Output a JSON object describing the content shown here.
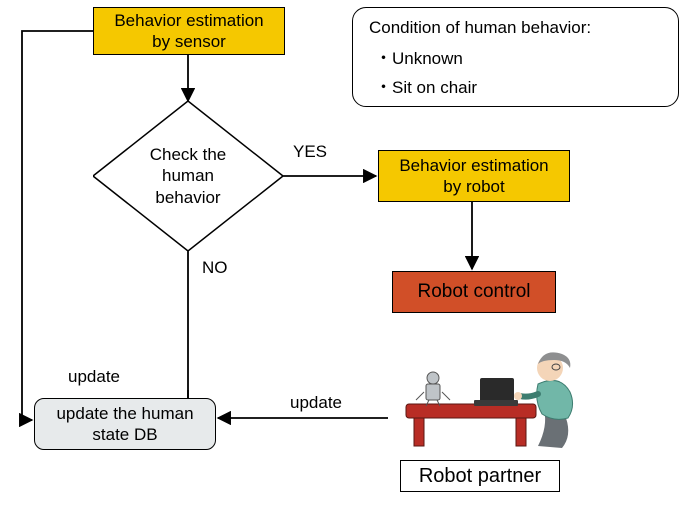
{
  "flow": {
    "type": "flowchart",
    "nodes": {
      "sensor": {
        "label": "Behavior estimation\nby sensor",
        "shape": "rect",
        "fill": "#f5c800",
        "border": "#000000",
        "fontsize": 17
      },
      "check": {
        "label": "Check the\nhuman\nbehavior",
        "shape": "diamond",
        "fill": "#ffffff",
        "border": "#000000",
        "fontsize": 17
      },
      "estRobot": {
        "label": "Behavior estimation\nby robot",
        "shape": "rect",
        "fill": "#f5c800",
        "border": "#000000",
        "fontsize": 17
      },
      "control": {
        "label": "Robot control",
        "shape": "rect",
        "fill": "#d14f28",
        "border": "#000000",
        "fontsize": 19
      },
      "updateDB": {
        "label": "update the human\nstate DB",
        "shape": "roundrect",
        "fill": "#e7eaeb",
        "border": "#000000",
        "fontsize": 17
      },
      "partner": {
        "label": "Robot partner",
        "shape": "label",
        "fill": "#ffffff",
        "border": "#000000",
        "fontsize": 20
      }
    },
    "condition_box": {
      "title": "Condition of human behavior:",
      "items": [
        "Unknown",
        "Sit on chair"
      ],
      "fill": "#ffffff",
      "border": "#000000",
      "fontsize": 17,
      "radius": 14
    },
    "edge_labels": {
      "yes": "YES",
      "no": "NO",
      "update1": "update",
      "update2": "update"
    },
    "edges": [
      {
        "from": "sensor",
        "to": "check"
      },
      {
        "from": "check",
        "to": "estRobot",
        "label_key": "yes"
      },
      {
        "from": "check",
        "to": "updateDB",
        "label_key": "no"
      },
      {
        "from": "estRobot",
        "to": "control"
      },
      {
        "from": "sensor",
        "to": "updateDB",
        "label_key": "update1"
      },
      {
        "from": "partner",
        "to": "updateDB",
        "label_key": "update2"
      }
    ],
    "colors": {
      "arrow": "#000000",
      "background": "#ffffff"
    },
    "illustration": {
      "desc": "Elderly person in teal top sitting at low red table with small robot and laptop",
      "table_color": "#b82d25",
      "shirt_color": "#71b7a8",
      "hair_color": "#8e8f90",
      "skin_color": "#f4d5b8",
      "pants_color": "#6a7075",
      "laptop_color": "#2a2a2a",
      "robot_color": "#bfc4c8"
    }
  }
}
